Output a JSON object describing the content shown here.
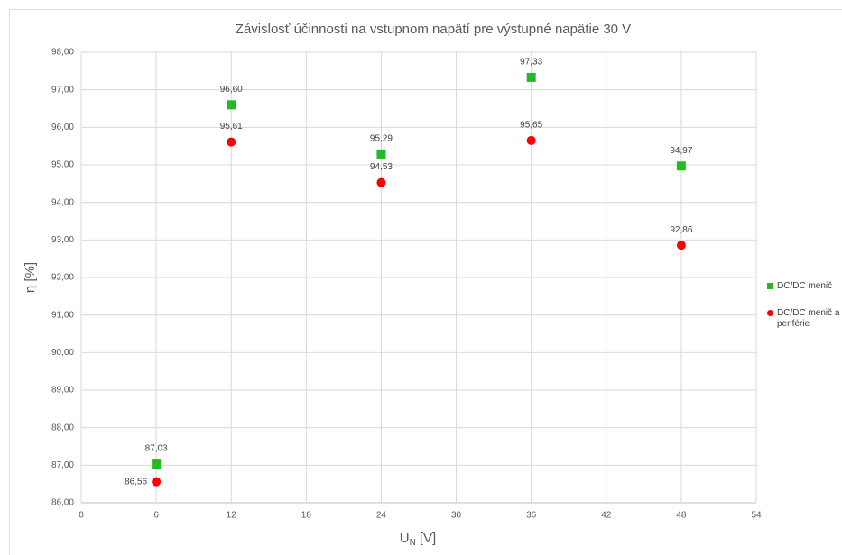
{
  "chart_data": {
    "type": "scatter",
    "title": "Závislosť účinnosti na vstupnom napätí pre výstupné napätie 30 V",
    "xlabel": [
      "U",
      "N",
      "[V]"
    ],
    "ylabel": "η [%]",
    "x": [
      6,
      12,
      24,
      36,
      48
    ],
    "series": [
      {
        "name": "DC/DC menič",
        "color": "#22bb22",
        "marker": "square",
        "values": [
          87.03,
          96.6,
          95.29,
          97.33,
          94.97
        ],
        "value_labels": [
          "87,03",
          "96,60",
          "95,29",
          "97,33",
          "94,97"
        ]
      },
      {
        "name": "DC/DC menič a periférie",
        "color": "#ff0000",
        "marker": "circle",
        "values": [
          86.56,
          95.61,
          94.53,
          95.65,
          92.86
        ],
        "value_labels": [
          "86,56",
          "95,61",
          "94,53",
          "95,65",
          "92,86"
        ]
      }
    ],
    "xlim": [
      0,
      54
    ],
    "xticks": [
      0,
      6,
      12,
      18,
      24,
      30,
      36,
      42,
      48,
      54
    ],
    "ylim": [
      86,
      98
    ],
    "yticks": [
      {
        "value": 86,
        "label": "86,00"
      },
      {
        "value": 87,
        "label": "87,00"
      },
      {
        "value": 88,
        "label": "88,00"
      },
      {
        "value": 89,
        "label": "89,00"
      },
      {
        "value": 90,
        "label": "90,00"
      },
      {
        "value": 91,
        "label": "91,00"
      },
      {
        "value": 92,
        "label": "92,00"
      },
      {
        "value": 93,
        "label": "93,00"
      },
      {
        "value": 94,
        "label": "94,00"
      },
      {
        "value": 95,
        "label": "95,00"
      },
      {
        "value": 96,
        "label": "96,00"
      },
      {
        "value": 97,
        "label": "97,00"
      },
      {
        "value": 98,
        "label": "98,00"
      }
    ],
    "grid": true,
    "legend": "right"
  }
}
